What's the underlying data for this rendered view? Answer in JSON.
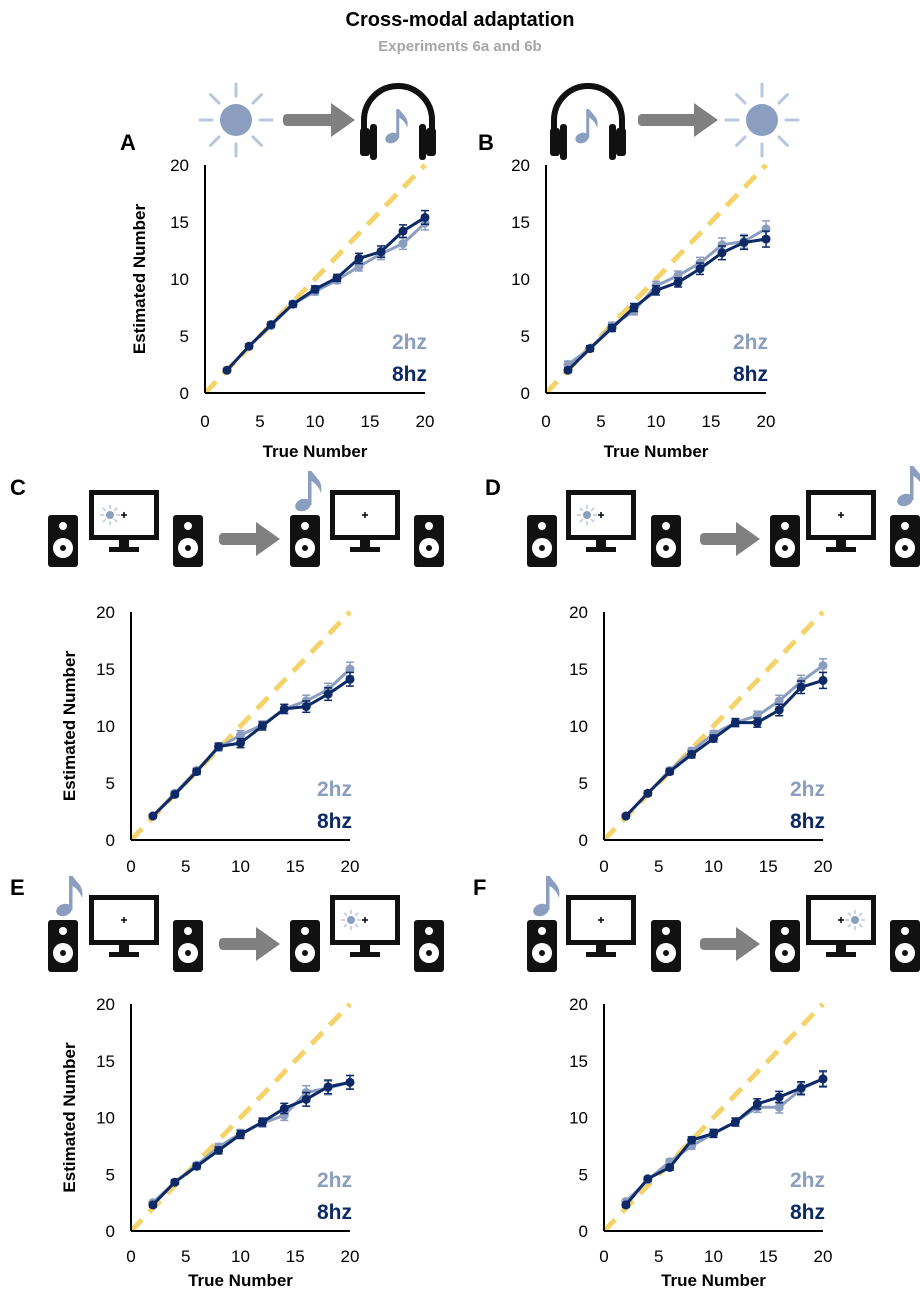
{
  "title": "Cross-modal adaptation",
  "subtitle": "Experiments 6a and 6b",
  "colors": {
    "series_2hz": "#8b9ec0",
    "series_8hz": "#0d2a66",
    "identity": "#f5d36b",
    "arrow": "#808080",
    "icon": "#111111",
    "sun": "#8b9ec0"
  },
  "icons": {
    "A": [
      "sun-icon",
      "arrow-icon",
      "headphones-icon"
    ],
    "B": [
      "headphones-icon",
      "arrow-icon",
      "sun-icon"
    ],
    "C": [
      "speaker-icon",
      "monitor-icon",
      "speaker-icon",
      "arrow-icon",
      "music-note-icon",
      "speaker-icon",
      "monitor-icon"
    ],
    "D": [
      "speaker-icon",
      "monitor-icon",
      "speaker-icon",
      "arrow-icon",
      "speaker-icon",
      "monitor-icon",
      "music-note-icon"
    ],
    "E": [
      "music-note-icon",
      "speaker-icon",
      "monitor-icon",
      "speaker-icon",
      "arrow-icon",
      "speaker-icon",
      "monitor-icon",
      "speaker-icon"
    ],
    "F": [
      "music-note-icon",
      "speaker-icon",
      "monitor-icon",
      "speaker-icon",
      "arrow-icon",
      "speaker-icon",
      "monitor-icon",
      "speaker-icon"
    ]
  },
  "chart_data": [
    {
      "panel": "A",
      "type": "line",
      "xlabel": "True Number",
      "ylabel": "Estimated Number",
      "xlim": [
        0,
        20
      ],
      "ylim": [
        0,
        20
      ],
      "xticks": [
        0,
        5,
        10,
        15,
        20
      ],
      "yticks": [
        0,
        5,
        10,
        15,
        20
      ],
      "x": [
        2,
        4,
        6,
        8,
        10,
        12,
        14,
        16,
        18,
        20
      ],
      "legend": [
        "2hz",
        "8hz"
      ],
      "series": [
        {
          "name": "2hz",
          "values": [
            2.0,
            4.1,
            5.9,
            7.8,
            8.9,
            9.9,
            11.1,
            12.2,
            13.1,
            14.9
          ],
          "errors": [
            0.15,
            0.2,
            0.2,
            0.25,
            0.3,
            0.3,
            0.4,
            0.5,
            0.5,
            0.6
          ]
        },
        {
          "name": "8hz",
          "values": [
            2.0,
            4.1,
            6.0,
            7.8,
            9.1,
            10.1,
            11.8,
            12.4,
            14.2,
            15.4
          ],
          "errors": [
            0.15,
            0.2,
            0.2,
            0.25,
            0.3,
            0.3,
            0.45,
            0.5,
            0.55,
            0.6
          ]
        }
      ]
    },
    {
      "panel": "B",
      "type": "line",
      "xlabel": "True Number",
      "ylabel": "",
      "xlim": [
        0,
        20
      ],
      "ylim": [
        0,
        20
      ],
      "xticks": [
        0,
        5,
        10,
        15,
        20
      ],
      "yticks": [
        0,
        5,
        10,
        15,
        20
      ],
      "x": [
        2,
        4,
        6,
        8,
        10,
        12,
        14,
        16,
        18,
        20
      ],
      "legend": [
        "2hz",
        "8hz"
      ],
      "series": [
        {
          "name": "2hz",
          "values": [
            2.5,
            3.9,
            5.9,
            7.2,
            9.4,
            10.3,
            11.4,
            13.0,
            13.3,
            14.4
          ],
          "errors": [
            0.3,
            0.25,
            0.3,
            0.35,
            0.4,
            0.4,
            0.5,
            0.6,
            0.6,
            0.7
          ]
        },
        {
          "name": "8hz",
          "values": [
            2.0,
            3.9,
            5.7,
            7.5,
            9.0,
            9.7,
            10.9,
            12.3,
            13.2,
            13.5
          ],
          "errors": [
            0.2,
            0.25,
            0.3,
            0.35,
            0.4,
            0.4,
            0.5,
            0.6,
            0.6,
            0.7
          ]
        }
      ]
    },
    {
      "panel": "C",
      "type": "line",
      "xlabel": "",
      "ylabel": "Estimated Number",
      "xlim": [
        0,
        20
      ],
      "ylim": [
        0,
        20
      ],
      "xticks": [
        0,
        5,
        10,
        15,
        20
      ],
      "yticks": [
        0,
        5,
        10,
        15,
        20
      ],
      "x": [
        2,
        4,
        6,
        8,
        10,
        12,
        14,
        16,
        18,
        20
      ],
      "legend": [
        "2hz",
        "8hz"
      ],
      "series": [
        {
          "name": "2hz",
          "values": [
            2.1,
            4.1,
            6.1,
            8.1,
            9.2,
            10.1,
            11.5,
            12.2,
            13.2,
            15.0
          ],
          "errors": [
            0.15,
            0.2,
            0.25,
            0.3,
            0.4,
            0.35,
            0.4,
            0.5,
            0.55,
            0.6
          ]
        },
        {
          "name": "8hz",
          "values": [
            2.1,
            4.0,
            6.0,
            8.2,
            8.5,
            10.0,
            11.5,
            11.7,
            12.8,
            14.1
          ],
          "errors": [
            0.15,
            0.2,
            0.25,
            0.3,
            0.4,
            0.35,
            0.4,
            0.5,
            0.55,
            0.6
          ]
        }
      ]
    },
    {
      "panel": "D",
      "type": "line",
      "xlabel": "",
      "ylabel": "",
      "xlim": [
        0,
        20
      ],
      "ylim": [
        0,
        20
      ],
      "xticks": [
        0,
        5,
        10,
        15,
        20
      ],
      "yticks": [
        0,
        5,
        10,
        15,
        20
      ],
      "x": [
        2,
        4,
        6,
        8,
        10,
        12,
        14,
        16,
        18,
        20
      ],
      "legend": [
        "2hz",
        "8hz"
      ],
      "series": [
        {
          "name": "2hz",
          "values": [
            2.1,
            4.1,
            6.1,
            7.8,
            9.3,
            10.3,
            10.9,
            12.2,
            13.9,
            15.3
          ],
          "errors": [
            0.15,
            0.2,
            0.25,
            0.3,
            0.3,
            0.35,
            0.4,
            0.5,
            0.55,
            0.6
          ]
        },
        {
          "name": "8hz",
          "values": [
            2.1,
            4.1,
            6.0,
            7.5,
            8.9,
            10.3,
            10.3,
            11.4,
            13.4,
            14.0
          ],
          "errors": [
            0.15,
            0.2,
            0.25,
            0.3,
            0.3,
            0.35,
            0.4,
            0.5,
            0.55,
            0.7
          ]
        }
      ]
    },
    {
      "panel": "E",
      "type": "line",
      "xlabel": "True Number",
      "ylabel": "Estimated Number",
      "xlim": [
        0,
        20
      ],
      "ylim": [
        0,
        20
      ],
      "xticks": [
        0,
        5,
        10,
        15,
        20
      ],
      "yticks": [
        0,
        5,
        10,
        15,
        20
      ],
      "x": [
        2,
        4,
        6,
        8,
        10,
        12,
        14,
        16,
        18,
        20
      ],
      "legend": [
        "2hz",
        "8hz"
      ],
      "series": [
        {
          "name": "2hz",
          "values": [
            2.5,
            4.3,
            5.8,
            7.4,
            8.6,
            9.5,
            10.2,
            12.2,
            12.6,
            13.1
          ],
          "errors": [
            0.2,
            0.2,
            0.25,
            0.3,
            0.35,
            0.35,
            0.45,
            0.6,
            0.6,
            0.6
          ]
        },
        {
          "name": "8hz",
          "values": [
            2.3,
            4.3,
            5.7,
            7.1,
            8.5,
            9.6,
            10.8,
            11.6,
            12.7,
            13.1
          ],
          "errors": [
            0.2,
            0.2,
            0.25,
            0.3,
            0.35,
            0.35,
            0.45,
            0.6,
            0.6,
            0.6
          ]
        }
      ]
    },
    {
      "panel": "F",
      "type": "line",
      "xlabel": "True Number",
      "ylabel": "",
      "xlim": [
        0,
        20
      ],
      "ylim": [
        0,
        20
      ],
      "xticks": [
        0,
        5,
        10,
        15,
        20
      ],
      "yticks": [
        0,
        5,
        10,
        15,
        20
      ],
      "x": [
        2,
        4,
        6,
        8,
        10,
        12,
        14,
        16,
        18,
        20
      ],
      "legend": [
        "2hz",
        "8hz"
      ],
      "series": [
        {
          "name": "2hz",
          "values": [
            2.6,
            4.5,
            6.1,
            7.5,
            8.6,
            9.6,
            10.9,
            10.9,
            12.5,
            13.4
          ],
          "errors": [
            0.2,
            0.2,
            0.25,
            0.3,
            0.35,
            0.35,
            0.45,
            0.5,
            0.55,
            0.6
          ]
        },
        {
          "name": "8hz",
          "values": [
            2.3,
            4.6,
            5.6,
            8.0,
            8.6,
            9.6,
            11.2,
            11.8,
            12.6,
            13.4
          ],
          "errors": [
            0.2,
            0.2,
            0.25,
            0.3,
            0.35,
            0.35,
            0.45,
            0.5,
            0.55,
            0.7
          ]
        }
      ]
    }
  ]
}
